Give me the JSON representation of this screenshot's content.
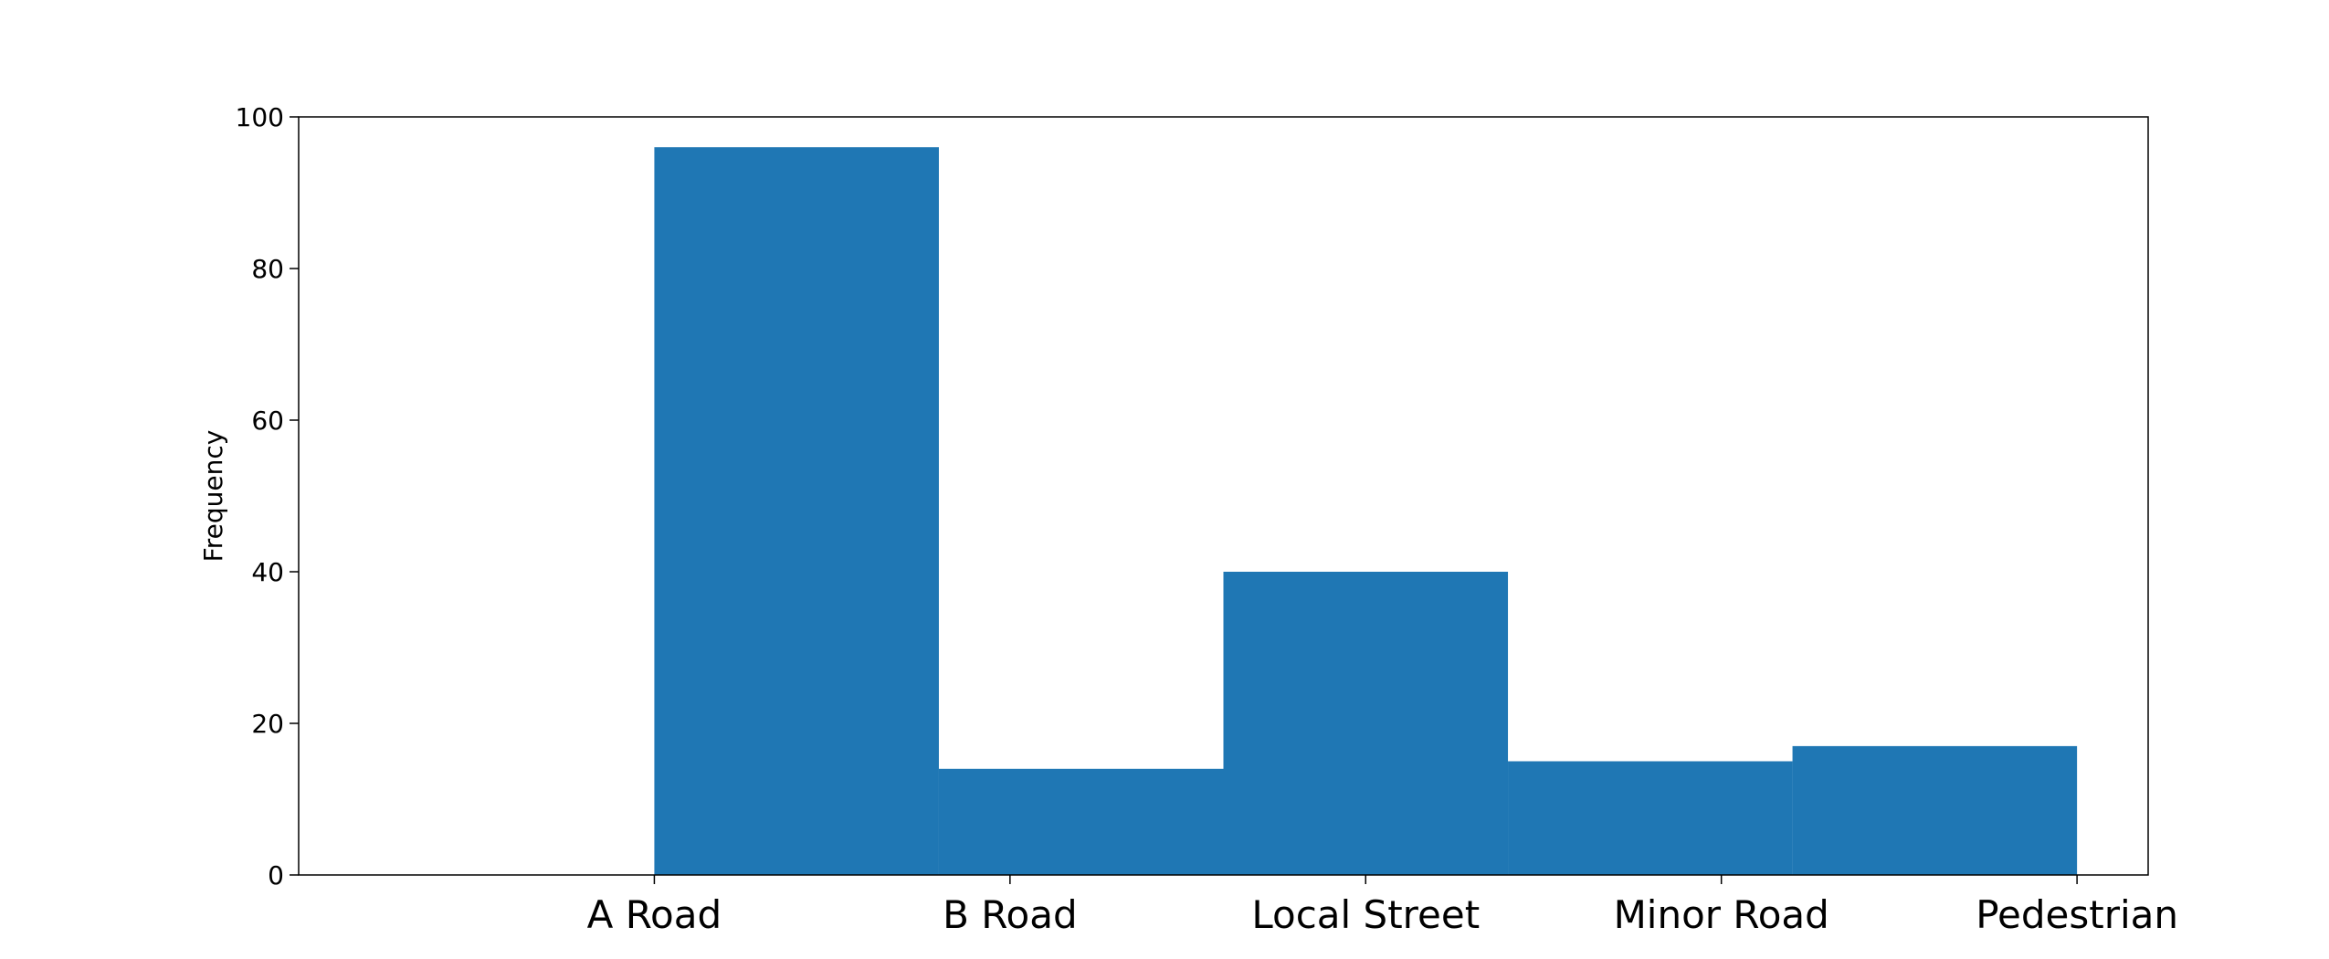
{
  "chart_data": {
    "type": "bar",
    "title": "",
    "xlabel": "",
    "ylabel": "Frequency",
    "categories": [
      "A Road",
      "B Road",
      "Local Street",
      "Minor Road",
      "Pedestrian"
    ],
    "bins": [
      {
        "start": 0,
        "end": 0.8,
        "value": 96
      },
      {
        "start": 0.8,
        "end": 1.6,
        "value": 14
      },
      {
        "start": 1.6,
        "end": 2.4,
        "value": 40
      },
      {
        "start": 2.4,
        "end": 3.2,
        "value": 15
      },
      {
        "start": 3.2,
        "end": 4.0,
        "value": 17
      }
    ],
    "xlim": [
      -1,
      4.2
    ],
    "ylim": [
      0,
      100
    ],
    "yticks": [
      0,
      20,
      40,
      60,
      80,
      100
    ],
    "xtick_positions": [
      0,
      1,
      2,
      3,
      4
    ],
    "bar_color": "#1f77b4",
    "grid": false,
    "legend": false
  }
}
